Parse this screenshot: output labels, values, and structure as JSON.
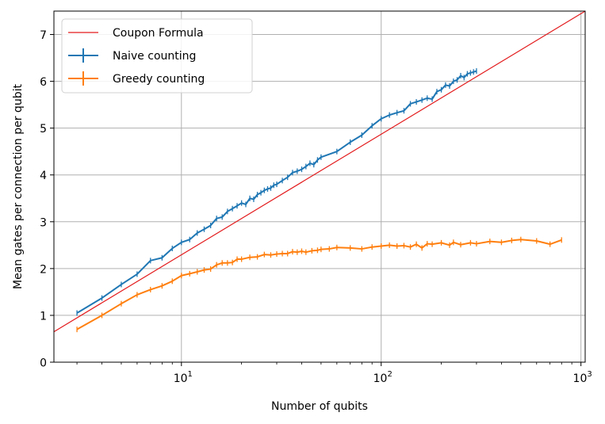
{
  "chart_data": {
    "type": "line",
    "xlabel": "Number of qubits",
    "ylabel": "Mean gates per connection per qubit",
    "xscale": "log",
    "xlim": [
      2.3,
      1050
    ],
    "ylim": [
      0,
      7.5
    ],
    "yticks": [
      "0",
      "1",
      "2",
      "3",
      "4",
      "5",
      "6",
      "7"
    ],
    "xticks": [
      {
        "value": 10,
        "base": "10",
        "exp": "1"
      },
      {
        "value": 100,
        "base": "10",
        "exp": "2"
      },
      {
        "value": 1000,
        "base": "10",
        "exp": "3"
      }
    ],
    "grid": true,
    "legend_position": "top-left",
    "series": [
      {
        "name": "Coupon Formula",
        "kind": "line",
        "color": "#e31a1c",
        "x": [
          2.3,
          1050
        ],
        "y": [
          0.65,
          7.5
        ]
      },
      {
        "name": "Naive counting",
        "kind": "errorbar",
        "color": "#1f77b4",
        "x": [
          3,
          4,
          5,
          6,
          7,
          8,
          9,
          10,
          11,
          12,
          13,
          14,
          15,
          16,
          17,
          18,
          19,
          20,
          21,
          22,
          23,
          24,
          25,
          26,
          27,
          28,
          29,
          30,
          32,
          34,
          36,
          38,
          40,
          42,
          44,
          46,
          48,
          50,
          60,
          70,
          80,
          90,
          100,
          110,
          120,
          130,
          140,
          150,
          160,
          170,
          180,
          190,
          200,
          210,
          220,
          230,
          240,
          250,
          260,
          270,
          280,
          290,
          300
        ],
        "y": [
          1.05,
          1.37,
          1.66,
          1.88,
          2.17,
          2.23,
          2.43,
          2.56,
          2.62,
          2.76,
          2.84,
          2.92,
          3.07,
          3.1,
          3.22,
          3.28,
          3.34,
          3.4,
          3.37,
          3.5,
          3.48,
          3.58,
          3.62,
          3.67,
          3.7,
          3.72,
          3.78,
          3.8,
          3.88,
          3.95,
          4.05,
          4.08,
          4.12,
          4.18,
          4.25,
          4.22,
          4.32,
          4.38,
          4.5,
          4.7,
          4.85,
          5.05,
          5.2,
          5.28,
          5.33,
          5.37,
          5.52,
          5.56,
          5.6,
          5.64,
          5.62,
          5.78,
          5.82,
          5.92,
          5.9,
          6.0,
          6.03,
          6.12,
          6.08,
          6.16,
          6.18,
          6.2,
          6.22
        ]
      },
      {
        "name": "Greedy counting",
        "kind": "errorbar",
        "color": "#ff7f0e",
        "x": [
          3,
          4,
          5,
          6,
          7,
          8,
          9,
          10,
          11,
          12,
          13,
          14,
          15,
          16,
          17,
          18,
          19,
          20,
          22,
          24,
          26,
          28,
          30,
          32,
          34,
          36,
          38,
          40,
          42,
          45,
          48,
          50,
          55,
          60,
          70,
          80,
          90,
          100,
          110,
          120,
          130,
          140,
          150,
          160,
          170,
          180,
          200,
          220,
          230,
          250,
          280,
          300,
          350,
          400,
          450,
          500,
          600,
          700,
          800
        ],
        "y": [
          0.7,
          1.0,
          1.25,
          1.44,
          1.55,
          1.63,
          1.73,
          1.85,
          1.89,
          1.93,
          1.97,
          1.99,
          2.08,
          2.12,
          2.12,
          2.13,
          2.2,
          2.2,
          2.24,
          2.25,
          2.3,
          2.29,
          2.31,
          2.32,
          2.32,
          2.36,
          2.35,
          2.37,
          2.35,
          2.38,
          2.39,
          2.41,
          2.42,
          2.45,
          2.44,
          2.42,
          2.46,
          2.48,
          2.5,
          2.48,
          2.49,
          2.46,
          2.52,
          2.44,
          2.53,
          2.52,
          2.55,
          2.5,
          2.56,
          2.51,
          2.55,
          2.53,
          2.58,
          2.56,
          2.6,
          2.62,
          2.59,
          2.52,
          2.61
        ]
      }
    ]
  }
}
